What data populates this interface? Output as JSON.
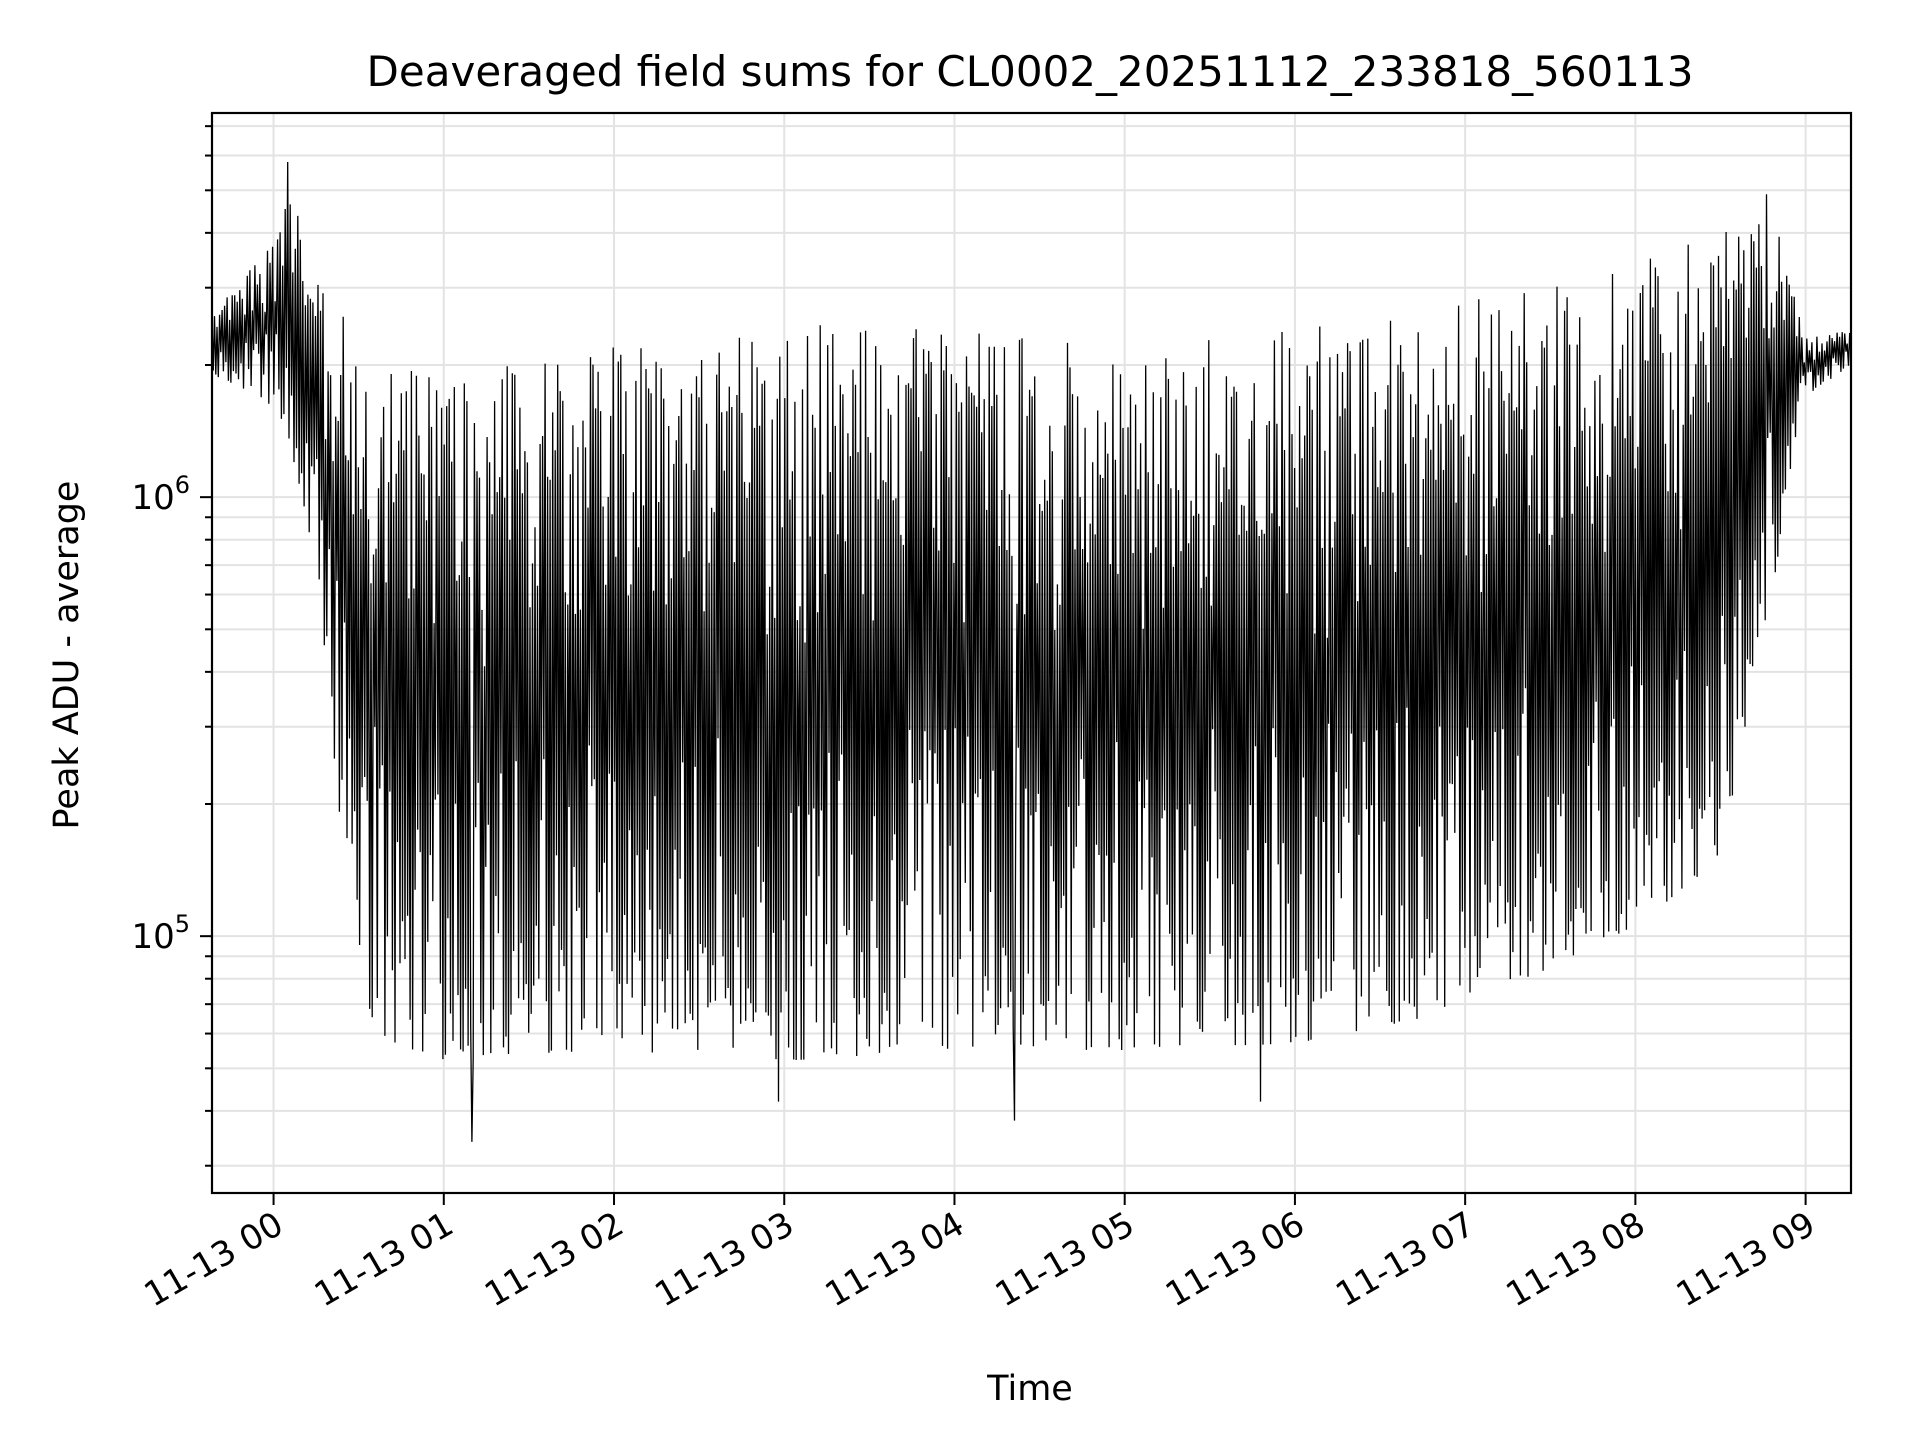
{
  "chart_data": {
    "type": "line",
    "title": "Deaveraged field sums for CL0002_20251112_233818_560113",
    "xlabel": "Time",
    "ylabel": "Peak ADU - average",
    "yscale": "log",
    "xlim": [
      "2025-11-12 23:38:18",
      "2025-11-13 09:16:00"
    ],
    "ylim": [
      26000,
      7500000
    ],
    "grid": true,
    "line_color": "#000000",
    "x_ticks": [
      "2025-11-13 00:00",
      "2025-11-13 01:00",
      "2025-11-13 02:00",
      "2025-11-13 03:00",
      "2025-11-13 04:00",
      "2025-11-13 05:00",
      "2025-11-13 06:00",
      "2025-11-13 07:00",
      "2025-11-13 08:00",
      "2025-11-13 09:00"
    ],
    "x_tick_labels": [
      "11-13 00",
      "11-13 01",
      "11-13 02",
      "11-13 03",
      "11-13 04",
      "11-13 05",
      "11-13 06",
      "11-13 07",
      "11-13 08",
      "11-13 09"
    ],
    "y_major_ticks": [
      100000,
      1000000
    ],
    "y_tick_labels": [
      {
        "base": "10",
        "exp": "5"
      },
      {
        "base": "10",
        "exp": "6"
      }
    ],
    "series": [
      {
        "x_start": "2025-11-12 23:38:18",
        "x_end": "2025-11-13 09:16:00",
        "n_points": 1300,
        "envelope_x": [
          "2025-11-12 23:38",
          "2025-11-12 23:55",
          "2025-11-13 00:05",
          "2025-11-13 00:15",
          "2025-11-13 00:30",
          "2025-11-13 01:00",
          "2025-11-13 02:00",
          "2025-11-13 03:00",
          "2025-11-13 04:00",
          "2025-11-13 05:00",
          "2025-11-13 06:00",
          "2025-11-13 07:00",
          "2025-11-13 07:30",
          "2025-11-13 08:00",
          "2025-11-13 08:30",
          "2025-11-13 08:50",
          "2025-11-13 09:00",
          "2025-11-13 09:16"
        ],
        "envelope_upper": [
          2600000,
          3500000,
          5200000,
          3300000,
          2500000,
          1900000,
          2200000,
          2500000,
          2400000,
          2200000,
          2400000,
          2800000,
          3000000,
          3400000,
          4000000,
          4500000,
          2300000,
          2400000
        ],
        "envelope_lower": [
          1900000,
          1700000,
          1400000,
          700000,
          60000,
          52000,
          55000,
          52000,
          55000,
          55000,
          57000,
          68000,
          85000,
          105000,
          150000,
          700000,
          1700000,
          2000000
        ],
        "min_spikes": [
          [
            "2025-11-13 01:10",
            34000
          ],
          [
            "2025-11-13 04:21",
            38000
          ],
          [
            "2025-11-13 02:58",
            42000
          ],
          [
            "2025-11-13 05:48",
            42000
          ]
        ],
        "max_spikes": [
          [
            "2025-11-13 00:05",
            5800000
          ],
          [
            "2025-11-13 08:46",
            4900000
          ]
        ]
      }
    ]
  }
}
